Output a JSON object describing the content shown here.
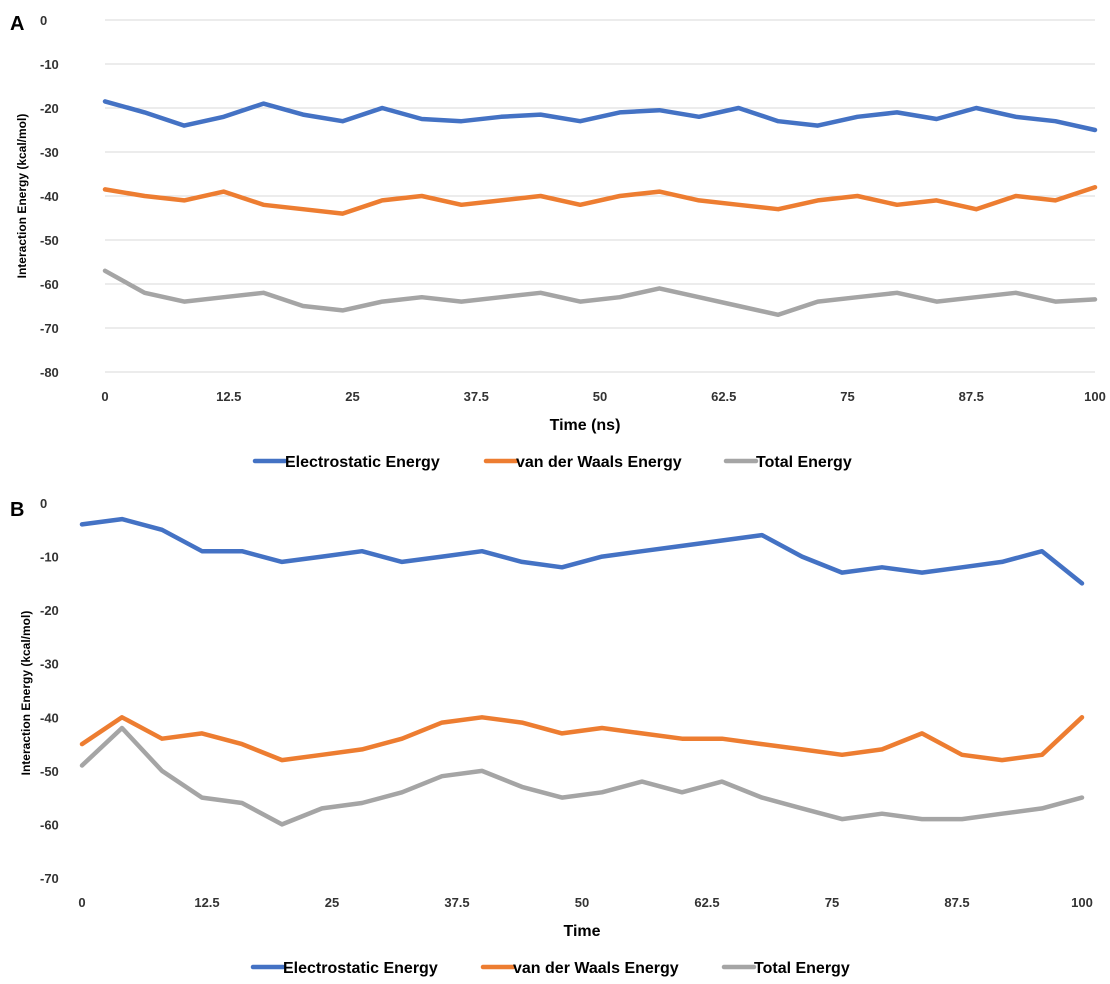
{
  "chart_data": [
    {
      "type": "line",
      "panel_label": "A",
      "xlabel": "Time (ns)",
      "ylabel": "Interaction Energy (kcal/mol)",
      "xlim": [
        0,
        100
      ],
      "ylim": [
        -80,
        0
      ],
      "x_ticks": [
        "0",
        "12.5",
        "25",
        "37.5",
        "50",
        "62.5",
        "75",
        "87.5",
        "100"
      ],
      "y_ticks": [
        "0",
        "-10",
        "-20",
        "-30",
        "-40",
        "-50",
        "-60",
        "-70",
        "-80"
      ],
      "grid": "horizontal",
      "legend_position": "bottom",
      "x": [
        0,
        4,
        8,
        12,
        16,
        20,
        24,
        28,
        32,
        36,
        40,
        44,
        48,
        52,
        56,
        60,
        64,
        68,
        72,
        76,
        80,
        84,
        88,
        92,
        96,
        100
      ],
      "series": [
        {
          "name": "Electrostatic Energy",
          "color": "#4472C4",
          "values": [
            -18.5,
            -21,
            -24,
            -22,
            -19,
            -21.5,
            -23,
            -20,
            -22.5,
            -23,
            -22,
            -21.5,
            -23,
            -21,
            -20.5,
            -22,
            -20,
            -23,
            -24,
            -22,
            -21,
            -22.5,
            -20,
            -22,
            -23,
            -25
          ]
        },
        {
          "name": "van der Waals Energy",
          "color": "#ED7D31",
          "values": [
            -38.5,
            -40,
            -41,
            -39,
            -42,
            -43,
            -44,
            -41,
            -40,
            -42,
            -41,
            -40,
            -42,
            -40,
            -39,
            -41,
            -42,
            -43,
            -41,
            -40,
            -42,
            -41,
            -43,
            -40,
            -41,
            -38
          ]
        },
        {
          "name": "Total Energy",
          "color": "#A5A5A5",
          "values": [
            -57,
            -62,
            -64,
            -63,
            -62,
            -65,
            -66,
            -64,
            -63,
            -64,
            -63,
            -62,
            -64,
            -63,
            -61,
            -63,
            -65,
            -67,
            -64,
            -63,
            -62,
            -64,
            -63,
            -62,
            -64,
            -63.5
          ]
        }
      ]
    },
    {
      "type": "line",
      "panel_label": "B",
      "xlabel": "Time",
      "ylabel": "Interaction Energy (kcal/mol)",
      "xlim": [
        0,
        100
      ],
      "ylim": [
        -70,
        0
      ],
      "x_ticks": [
        "0",
        "12.5",
        "25",
        "37.5",
        "50",
        "62.5",
        "75",
        "87.5",
        "100"
      ],
      "y_ticks": [
        "0",
        "-10",
        "-20",
        "-30",
        "-40",
        "-50",
        "-60",
        "-70"
      ],
      "grid": "none",
      "legend_position": "bottom",
      "x": [
        0,
        4,
        8,
        12,
        16,
        20,
        24,
        28,
        32,
        36,
        40,
        44,
        48,
        52,
        56,
        60,
        64,
        68,
        72,
        76,
        80,
        84,
        88,
        92,
        96,
        100
      ],
      "series": [
        {
          "name": "Electrostatic Energy",
          "color": "#4472C4",
          "values": [
            -4,
            -3,
            -5,
            -9,
            -9,
            -11,
            -10,
            -9,
            -11,
            -10,
            -9,
            -11,
            -12,
            -10,
            -9,
            -8,
            -7,
            -6,
            -10,
            -13,
            -12,
            -13,
            -12,
            -11,
            -9,
            -15
          ]
        },
        {
          "name": "van der Waals Energy",
          "color": "#ED7D31",
          "values": [
            -45,
            -40,
            -44,
            -43,
            -45,
            -48,
            -47,
            -46,
            -44,
            -41,
            -40,
            -41,
            -43,
            -42,
            -43,
            -44,
            -44,
            -45,
            -46,
            -47,
            -46,
            -43,
            -47,
            -48,
            -47,
            -40
          ]
        },
        {
          "name": "Total Energy",
          "color": "#A5A5A5",
          "values": [
            -49,
            -42,
            -50,
            -55,
            -56,
            -60,
            -57,
            -56,
            -54,
            -51,
            -50,
            -53,
            -55,
            -54,
            -52,
            -54,
            -52,
            -55,
            -57,
            -59,
            -58,
            -59,
            -59,
            -58,
            -57,
            -55
          ]
        }
      ]
    }
  ]
}
